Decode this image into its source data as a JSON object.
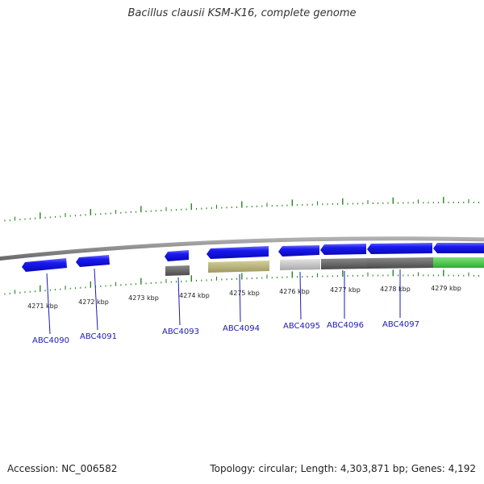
{
  "title": "Bacillus clausii KSM-K16, complete genome",
  "accession": "Accession: NC_006582",
  "stats": "Topology: circular; Length: 4,303,871 bp; Genes: 4,192",
  "colors": {
    "forward_gene": "#1010e8",
    "backbone": "#888888",
    "scale": "#22891c",
    "gene_label": "#1a1ab4",
    "track_dark": "#606060",
    "track_light": "#c8c8c8",
    "track_khaki": "#b8b27c",
    "track_green": "#44cc44"
  },
  "scale_labels": [
    "4271 kbp",
    "4272 kbp",
    "4273 kbp",
    "4274 kbp",
    "4275 kbp",
    "4276 kbp",
    "4277 kbp",
    "4278 kbp",
    "4279 kbp"
  ],
  "genes": [
    {
      "id": "ABC4090"
    },
    {
      "id": "ABC4091"
    },
    {
      "id": "ABC4093"
    },
    {
      "id": "ABC4094"
    },
    {
      "id": "ABC4095"
    },
    {
      "id": "ABC4096"
    },
    {
      "id": "ABC4097"
    }
  ]
}
